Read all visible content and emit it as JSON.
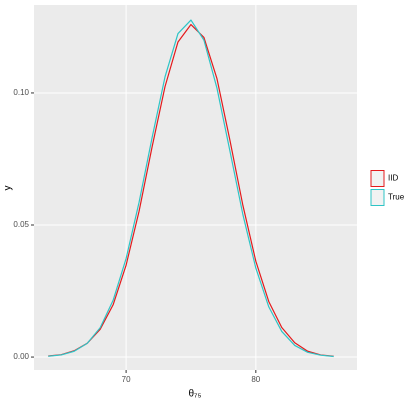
{
  "chart_data": {
    "type": "line",
    "x_label": "θ₇₅",
    "y_label": "y",
    "x": [
      64,
      65,
      66,
      67,
      68,
      69,
      70,
      71,
      72,
      73,
      74,
      75,
      76,
      77,
      78,
      79,
      80,
      81,
      82,
      83,
      84,
      85,
      86
    ],
    "series": [
      {
        "name": "IID",
        "color": "#e41a1c",
        "values": [
          0.0004,
          0.0009,
          0.0024,
          0.0052,
          0.0105,
          0.0198,
          0.0348,
          0.0552,
          0.0795,
          0.1024,
          0.1193,
          0.1259,
          0.121,
          0.1055,
          0.0822,
          0.0575,
          0.0363,
          0.021,
          0.0112,
          0.0054,
          0.0022,
          0.0008,
          0.0003
        ]
      },
      {
        "name": "True",
        "color": "#2ec4c6",
        "values": [
          0.0003,
          0.0008,
          0.0022,
          0.0052,
          0.0111,
          0.0215,
          0.0373,
          0.0586,
          0.083,
          0.1061,
          0.1225,
          0.1276,
          0.12,
          0.1019,
          0.0781,
          0.054,
          0.0337,
          0.019,
          0.0097,
          0.0044,
          0.0018,
          0.0007,
          0.0002
        ]
      }
    ],
    "xlim": [
      62.9,
      87.8
    ],
    "xticks": [
      70,
      80
    ],
    "ylim": [
      -0.0049,
      0.1333
    ],
    "yticks": [
      {
        "value": 0,
        "label": "0.00"
      },
      {
        "value": 0.05,
        "label": "0.05"
      },
      {
        "value": 0.1,
        "label": "0.10"
      }
    ],
    "grid": true,
    "legend": "right"
  }
}
